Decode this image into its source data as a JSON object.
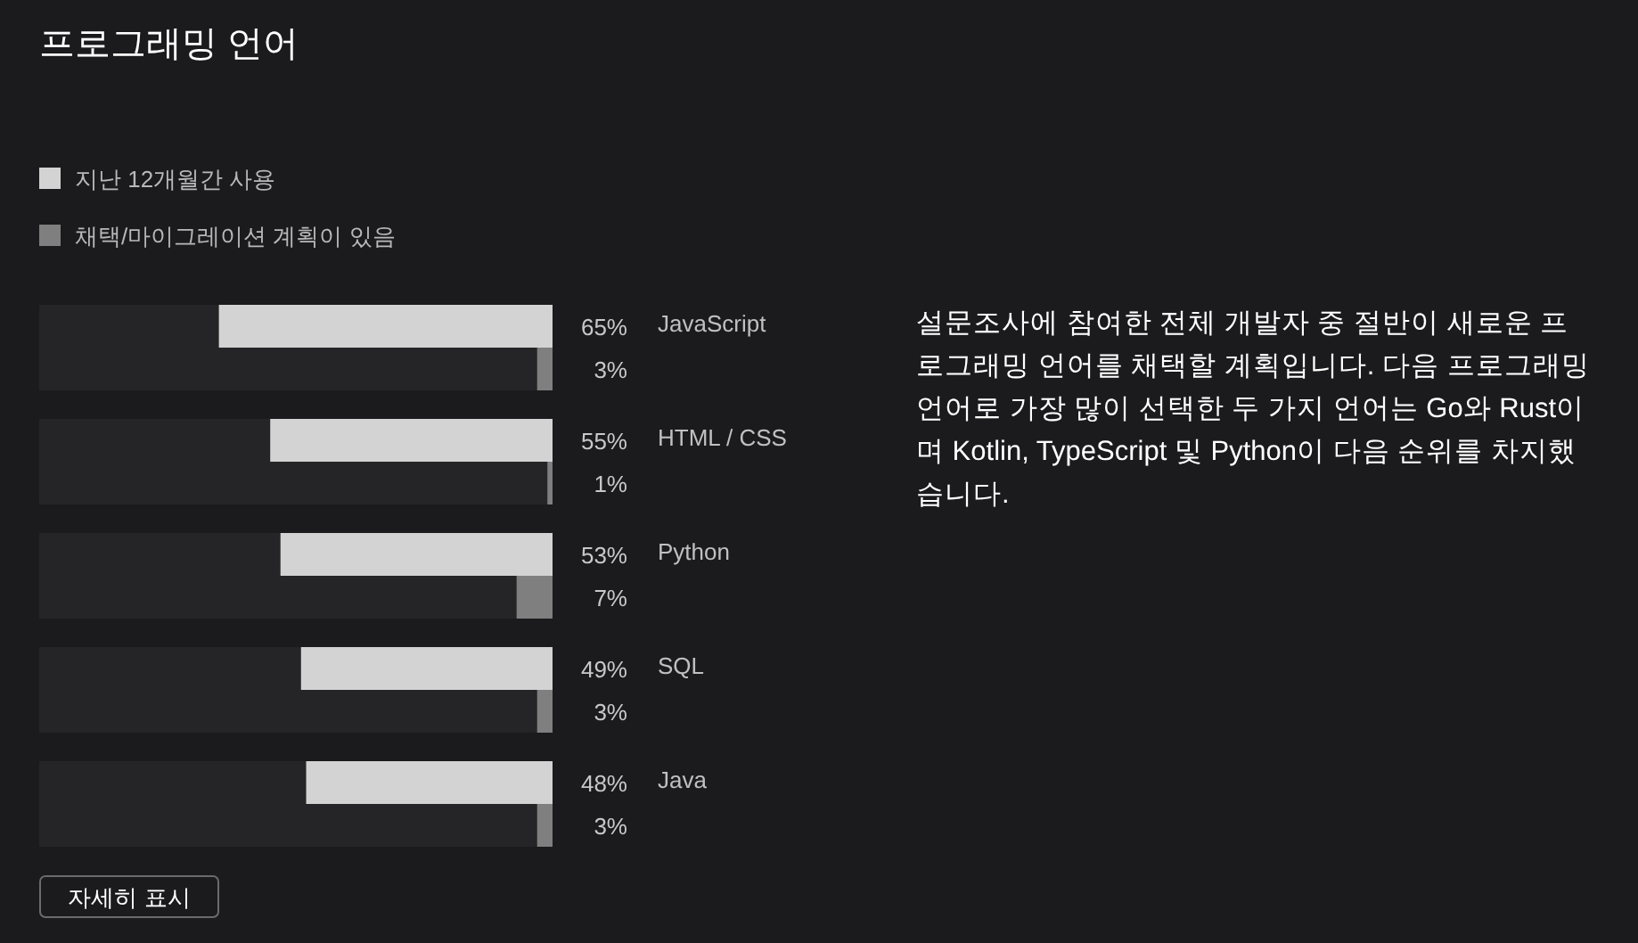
{
  "chart_data": {
    "type": "bar",
    "orientation": "horizontal",
    "title": "프로그래밍 언어",
    "categories": [
      "JavaScript",
      "HTML / CSS",
      "Python",
      "SQL",
      "Java"
    ],
    "series": [
      {
        "color": "#252527",
        "values": [
          100,
          100,
          100,
          100,
          100
        ]
      },
      {
        "name": "지난 12개월간 사용",
        "color": "#d3d3d3",
        "values": [
          65,
          55,
          53,
          49,
          48
        ],
        "value_labels": [
          "65%",
          "55%",
          "53%",
          "49%",
          "48%"
        ]
      },
      {
        "name": "채택/마이그레이션 계획이 있음",
        "color": "#7f7f7f",
        "values": [
          3,
          1,
          7,
          3,
          3
        ],
        "value_labels": [
          "3%",
          "1%",
          "7%",
          "3%",
          "3%"
        ]
      }
    ],
    "xlim": [
      100,
      0
    ],
    "tick_labels": "y",
    "legend": "top left",
    "annotations": [
      "설문조사에 참여한 전체 개발자 중 절반이 새로운 프로그래밍 언어를 채택할 계획입니다. 다음 프로그래밍 언어로 가장 많이 선택한 두 가지 언어는 Go와 Rust이며 Kotlin, TypeScript 및 Python이 다음 순위를 차지했습니다.",
      "자세히 표시"
    ]
  }
}
